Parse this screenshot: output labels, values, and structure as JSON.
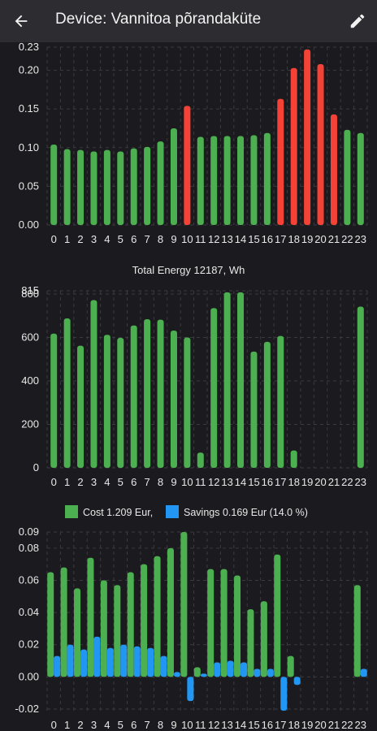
{
  "header": {
    "title": "Device: Vannitoa põrandaküte",
    "back_icon": "arrow-left-icon",
    "edit_icon": "pencil-icon"
  },
  "colors": {
    "background": "#1b1b1f",
    "topbar": "#2c2c31",
    "green": "#4caf50",
    "red": "#f44336",
    "blue": "#2196f3",
    "grid": "#3a3a3f",
    "text": "#e8e8e8"
  },
  "chart_data": [
    {
      "type": "bar",
      "title": "",
      "categories": [
        "0",
        "1",
        "2",
        "3",
        "4",
        "5",
        "6",
        "7",
        "8",
        "9",
        "10",
        "11",
        "12",
        "13",
        "14",
        "15",
        "16",
        "17",
        "18",
        "19",
        "20",
        "21",
        "22",
        "23"
      ],
      "values": [
        0.104,
        0.098,
        0.097,
        0.095,
        0.097,
        0.095,
        0.099,
        0.101,
        0.108,
        0.125,
        0.154,
        0.114,
        0.115,
        0.115,
        0.115,
        0.116,
        0.119,
        0.163,
        0.203,
        0.227,
        0.208,
        0.143,
        0.123,
        0.119
      ],
      "highlight": [
        false,
        false,
        false,
        false,
        false,
        false,
        false,
        false,
        false,
        false,
        true,
        false,
        false,
        false,
        false,
        false,
        false,
        true,
        true,
        true,
        true,
        true,
        false,
        false
      ],
      "yticks": [
        "0.00",
        "0.05",
        "0.10",
        "0.15",
        "0.20",
        "0.23"
      ],
      "ylim": [
        0,
        0.23
      ]
    },
    {
      "type": "bar",
      "title": "Total Energy 12187, Wh",
      "categories": [
        "0",
        "1",
        "2",
        "3",
        "4",
        "5",
        "6",
        "7",
        "8",
        "9",
        "10",
        "11",
        "12",
        "13",
        "14",
        "15",
        "16",
        "17",
        "18",
        "19",
        "20",
        "21",
        "22",
        "23"
      ],
      "values": [
        618,
        688,
        562,
        772,
        612,
        598,
        655,
        684,
        682,
        632,
        600,
        70,
        735,
        808,
        808,
        535,
        580,
        607,
        80,
        0,
        0,
        0,
        0,
        742
      ],
      "yticks": [
        "0",
        "200",
        "400",
        "600",
        "800",
        "815"
      ],
      "ylim": [
        0,
        815
      ]
    },
    {
      "type": "bar",
      "title": "",
      "categories": [
        "0",
        "1",
        "2",
        "3",
        "4",
        "5",
        "6",
        "7",
        "8",
        "9",
        "10",
        "11",
        "12",
        "13",
        "14",
        "15",
        "16",
        "17",
        "18",
        "19",
        "20",
        "21",
        "22",
        "23"
      ],
      "series": [
        {
          "name": "Cost 1.209 Eur,",
          "values": [
            0.065,
            0.068,
            0.055,
            0.074,
            0.06,
            0.057,
            0.065,
            0.07,
            0.075,
            0.08,
            0.09,
            0.006,
            0.067,
            0.067,
            0.063,
            0.042,
            0.047,
            0.076,
            0.013,
            0,
            0,
            0,
            0,
            0.057
          ]
        },
        {
          "name": "Savings 0.169 Eur (14.0 %)",
          "values": [
            0.013,
            0.02,
            0.017,
            0.025,
            0.018,
            0.02,
            0.019,
            0.018,
            0.013,
            0.003,
            -0.015,
            0.002,
            0.009,
            0.01,
            0.009,
            0.005,
            0.005,
            -0.021,
            -0.005,
            0,
            0,
            0,
            0,
            0.005
          ]
        }
      ],
      "yticks": [
        "-0.02",
        "0.00",
        "0.02",
        "0.04",
        "0.06",
        "0.08",
        "0.09"
      ],
      "ylim": [
        -0.021,
        0.09
      ]
    }
  ]
}
